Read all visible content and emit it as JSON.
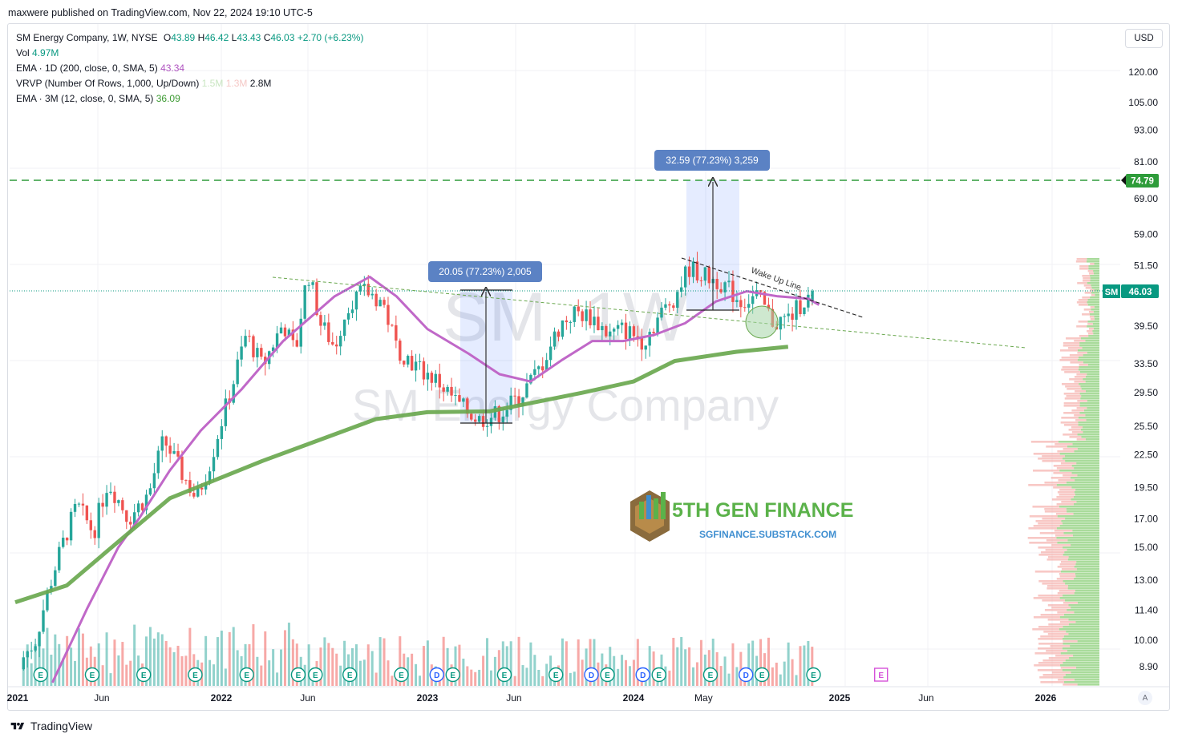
{
  "publisher_line": "maxwere published on TradingView.com, Nov 22, 2024 19:10 UTC-5",
  "legend": {
    "symbol_line": {
      "name": "SM Energy Company, 1W, NYSE",
      "o_label": "O",
      "o": "43.89",
      "h_label": "H",
      "h": "46.42",
      "l_label": "L",
      "l": "43.43",
      "c_label": "C",
      "c": "46.03",
      "change": "+2.70 (+6.23%)"
    },
    "vol": {
      "label": "Vol",
      "value": "4.97M"
    },
    "ema200": {
      "label": "EMA · 1D (200, close, 0, SMA, 5)",
      "value": "43.34"
    },
    "vrvp": {
      "label": "VRVP (Number Of Rows, 1,000, Up/Down)",
      "v1": "1.5M",
      "v2": "1.3M",
      "v3": "2.8M"
    },
    "ema12": {
      "label": "EMA · 3M (12, close, 0, SMA, 5)",
      "value": "36.09"
    }
  },
  "currency_button": "USD",
  "auto_button": "A",
  "footer_brand": "TradingView",
  "watermark": {
    "symbol": "SM, 1W",
    "company": "SM Energy Company"
  },
  "logo": {
    "title": "5TH GEN FINANCE",
    "url": "SGFINANCE.SUBSTACK.COM"
  },
  "measurements": [
    {
      "label": "20.05 (77.23%) 2,005"
    },
    {
      "label": "32.59 (77.23%) 3,259"
    }
  ],
  "annotation": "Wake Up Line",
  "price_axis_labels": [
    "120.00",
    "105.00",
    "93.00",
    "81.00",
    "69.00",
    "59.00",
    "51.50",
    "39.50",
    "33.50",
    "29.50",
    "25.50",
    "22.50",
    "19.50",
    "17.00",
    "15.00",
    "13.00",
    "11.40",
    "10.00",
    "8.90"
  ],
  "target_line": {
    "value": "74.79"
  },
  "current_price": {
    "ticker": "SM",
    "value": "46.03"
  },
  "time_axis_labels": [
    "2021",
    "Jun",
    "2022",
    "Jun",
    "2023",
    "Jun",
    "2024",
    "May",
    "2025",
    "Jun",
    "2026"
  ],
  "colors": {
    "up": "#26a69a",
    "down": "#ef5350",
    "ema_daily": "#c068c8",
    "ema_3m": "#6aa84f",
    "target": "#2e9c3a",
    "price_badge": "#089981",
    "measure_box": "#5b82c4",
    "accent": "#2962ff"
  },
  "chart_data": {
    "type": "candlestick",
    "timeframe": "1W",
    "y_scale": "log",
    "ylim": [
      8.3,
      135
    ],
    "x_range": [
      "2021-01",
      "2026-03"
    ],
    "price_ticks": [
      120,
      105,
      93,
      81,
      69,
      59,
      51.5,
      39.5,
      33.5,
      29.5,
      25.5,
      22.5,
      19.5,
      17,
      15,
      13,
      11.4,
      10,
      8.9
    ],
    "last_bar": {
      "open": 43.89,
      "high": 46.42,
      "low": 43.43,
      "close": 46.03
    },
    "ema_daily_200": [
      [
        2021.18,
        8.3
      ],
      [
        2021.35,
        11.5
      ],
      [
        2021.5,
        15
      ],
      [
        2021.6,
        17
      ],
      [
        2021.75,
        21
      ],
      [
        2021.9,
        25
      ],
      [
        2022.1,
        30
      ],
      [
        2022.3,
        37
      ],
      [
        2022.55,
        45
      ],
      [
        2022.72,
        49
      ],
      [
        2022.85,
        45
      ],
      [
        2023.0,
        39
      ],
      [
        2023.2,
        35
      ],
      [
        2023.35,
        32
      ],
      [
        2023.5,
        31
      ],
      [
        2023.65,
        34
      ],
      [
        2023.8,
        37
      ],
      [
        2023.95,
        37
      ],
      [
        2024.1,
        38
      ],
      [
        2024.25,
        40
      ],
      [
        2024.4,
        44
      ],
      [
        2024.55,
        46
      ],
      [
        2024.7,
        45
      ],
      [
        2024.85,
        44.5
      ],
      [
        2024.9,
        43.34
      ]
    ],
    "ema_3m_12": [
      [
        2021.0,
        11.8
      ],
      [
        2021.25,
        12.7
      ],
      [
        2021.45,
        14.8
      ],
      [
        2021.75,
        18.6
      ],
      [
        2022.2,
        21.9
      ],
      [
        2022.75,
        26.3
      ],
      [
        2023.0,
        27.1
      ],
      [
        2023.3,
        27.2
      ],
      [
        2023.75,
        29.5
      ],
      [
        2024.0,
        31.0
      ],
      [
        2024.2,
        33.9
      ],
      [
        2024.5,
        35.3
      ],
      [
        2024.75,
        36.09
      ]
    ],
    "volume_scale_peak_M": 20,
    "events_earnings_past": [
      "2021-02",
      "2021-05",
      "2021-08",
      "2021-11",
      "2022-02",
      "2022-05",
      "2022-06",
      "2022-08",
      "2022-11",
      "2023-02",
      "2023-05",
      "2023-08",
      "2023-11",
      "2024-02",
      "2024-05",
      "2024-08",
      "2024-11"
    ],
    "events_dividend": [
      "2023-02",
      "2023-11",
      "2024-02",
      "2024-08"
    ],
    "events_earnings_future": [
      "2025-02"
    ],
    "measures": [
      {
        "from_price": 25.96,
        "to_price": 46.01,
        "change": 20.05,
        "percent": 77.23
      },
      {
        "from_price": 42.2,
        "to_price": 74.79,
        "change": 32.59,
        "percent": 77.23
      }
    ],
    "horizontal_level": 74.79,
    "trendlines": [
      {
        "name": "Wake Up Line",
        "style": "dashed",
        "from": [
          "2024-05",
          53
        ],
        "to": [
          "2024-12",
          41
        ]
      },
      {
        "style": "dashed",
        "from": [
          "2022-03",
          48
        ],
        "to": [
          "2025-09",
          36
        ]
      }
    ]
  }
}
